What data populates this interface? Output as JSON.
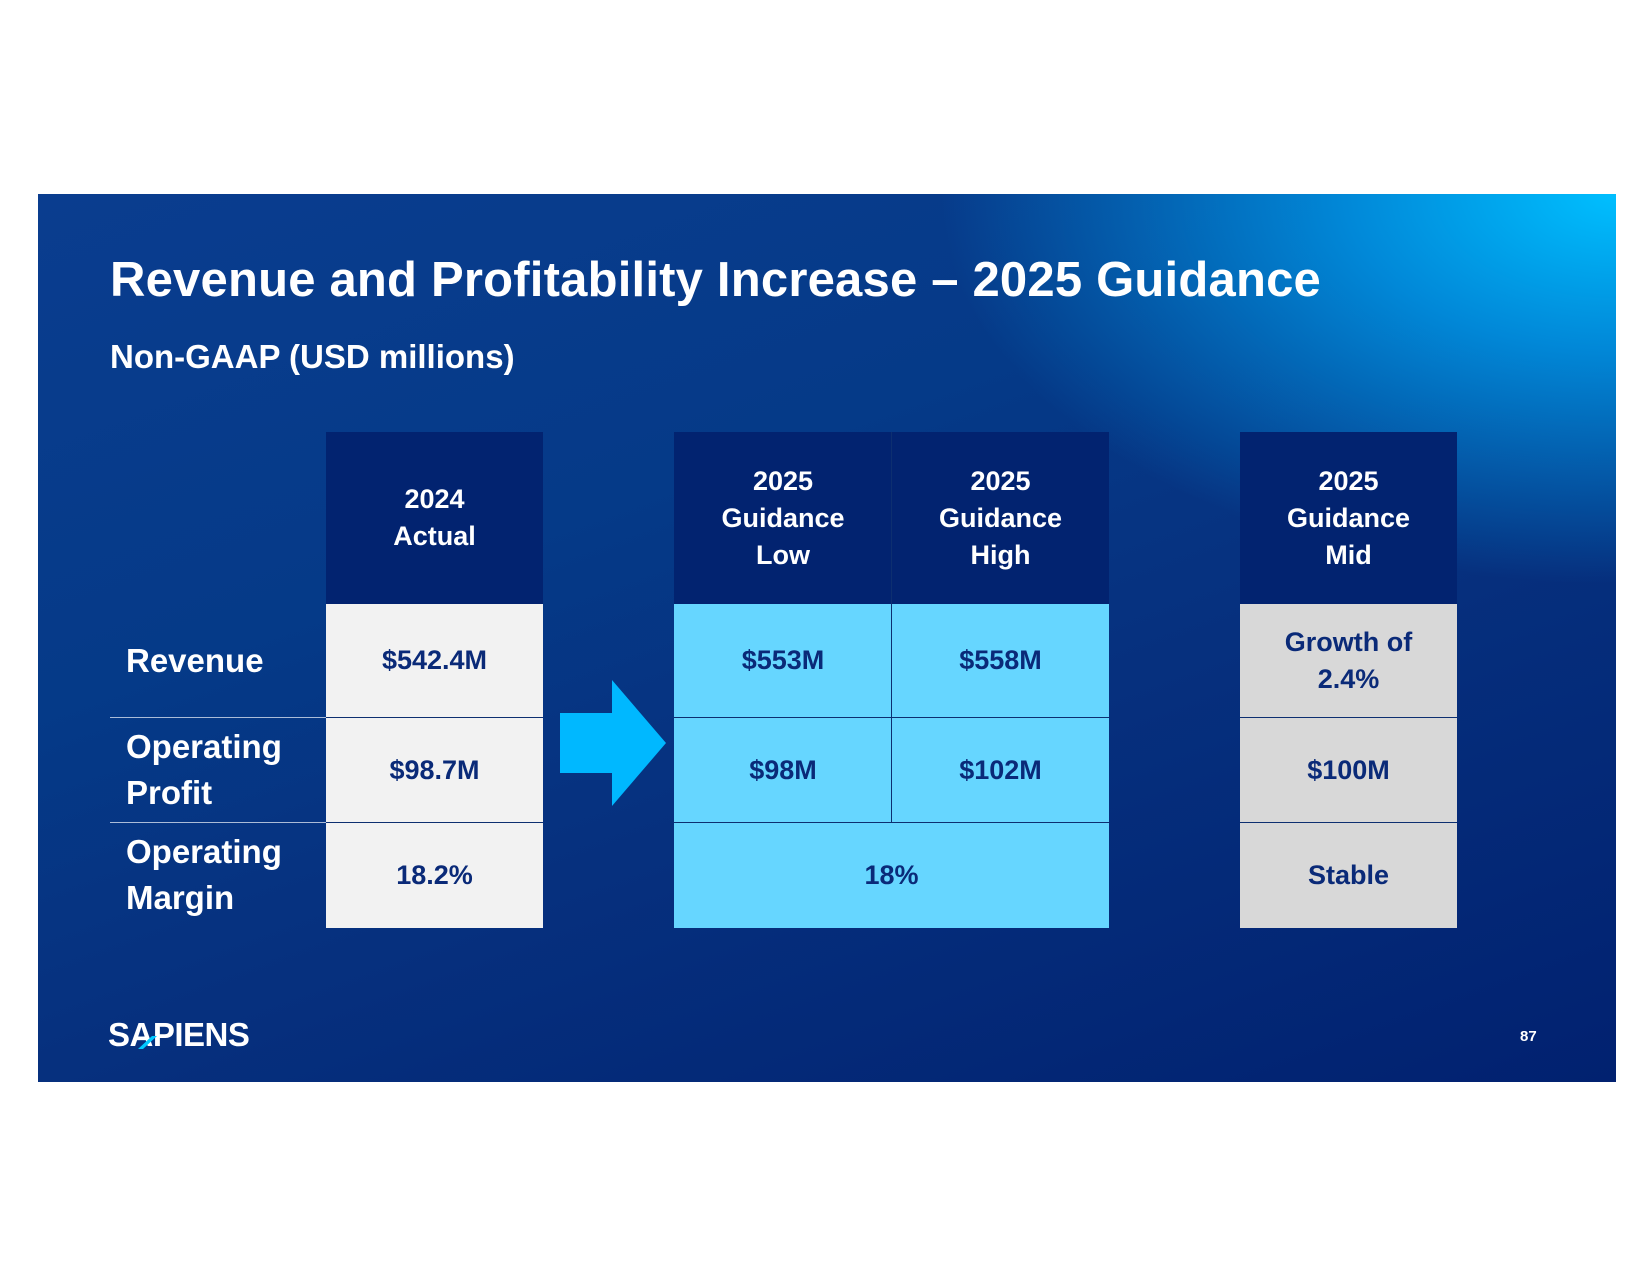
{
  "slide": {
    "title": "Revenue and Profitability Increase – 2025 Guidance",
    "subtitle": "Non-GAAP (USD millions)",
    "page_number": "87",
    "logo_text": "SAPIENS"
  },
  "table": {
    "headers": {
      "actual": "2024\nActual",
      "low": "2025\nGuidance\nLow",
      "high": "2025\nGuidance\nHigh",
      "mid": "2025\nGuidance\nMid"
    },
    "rows": [
      {
        "label": "Revenue",
        "actual": "$542.4M",
        "low": "$553M",
        "high": "$558M",
        "mid": "Growth of\n2.4%"
      },
      {
        "label": "Operating\nProfit",
        "actual": "$98.7M",
        "low": "$98M",
        "high": "$102M",
        "mid": "$100M"
      },
      {
        "label": "Operating\nMargin",
        "actual": "18.2%",
        "guidance": "18%",
        "mid": "Stable"
      }
    ]
  },
  "colors": {
    "header_bg": "#022370",
    "actual_bg": "#f2f2f2",
    "guidance_bg": "#66d6ff",
    "mid_bg": "#d8d8d8",
    "arrow": "#00b8ff",
    "text_dark": "#0a2a78"
  }
}
